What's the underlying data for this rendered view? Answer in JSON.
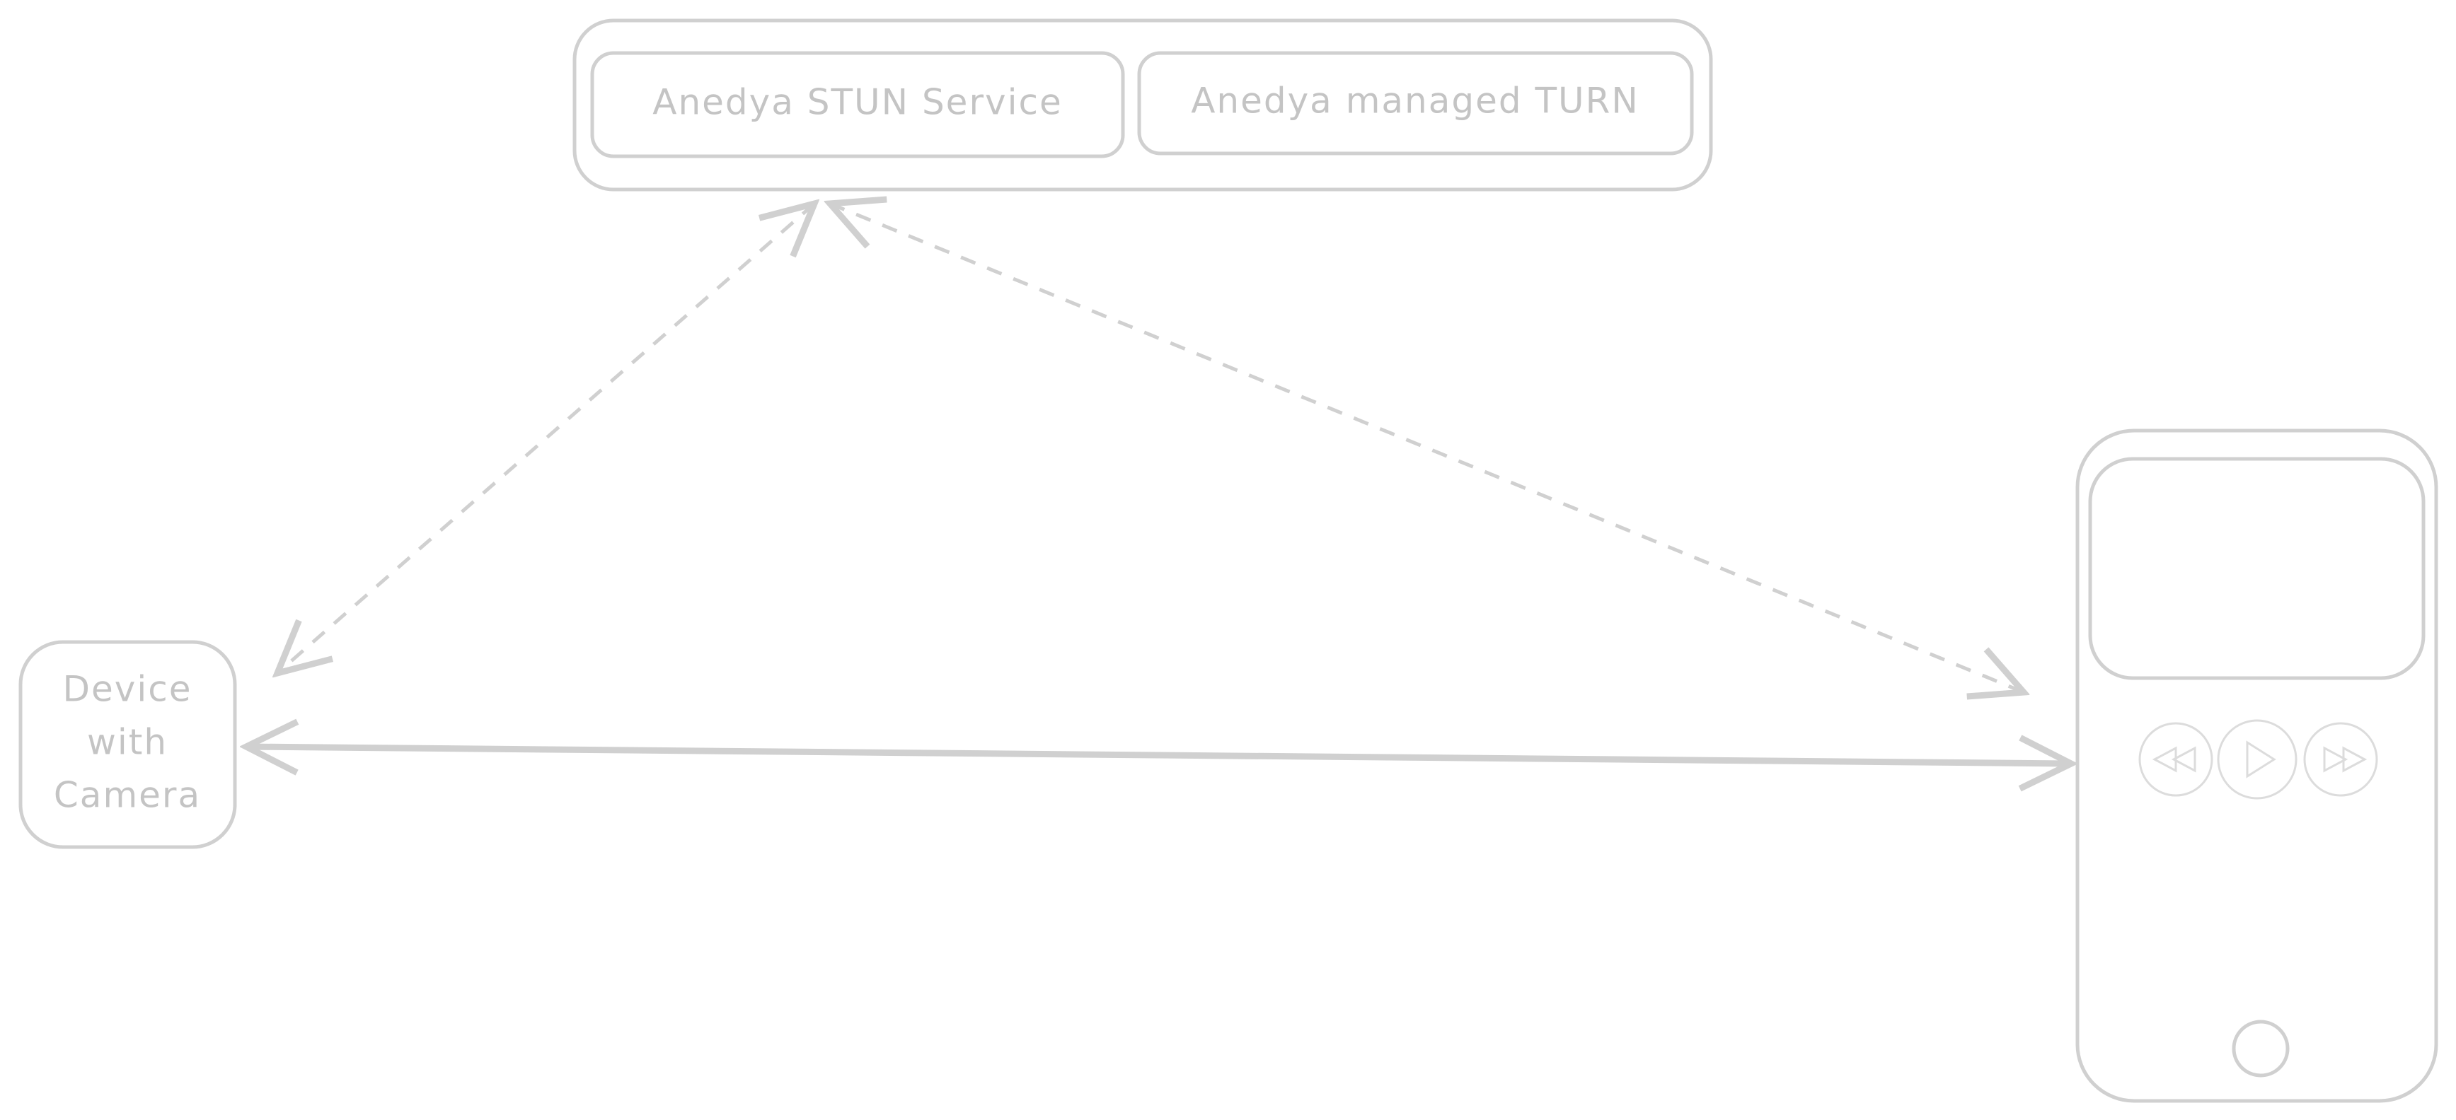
{
  "nodes": [
    {
      "label": "Anedya STUN Service"
    },
    {
      "label": "Anedya managed TURN"
    },
    {
      "lines": [
        "Device",
        "with",
        "Camera"
      ]
    }
  ]
}
